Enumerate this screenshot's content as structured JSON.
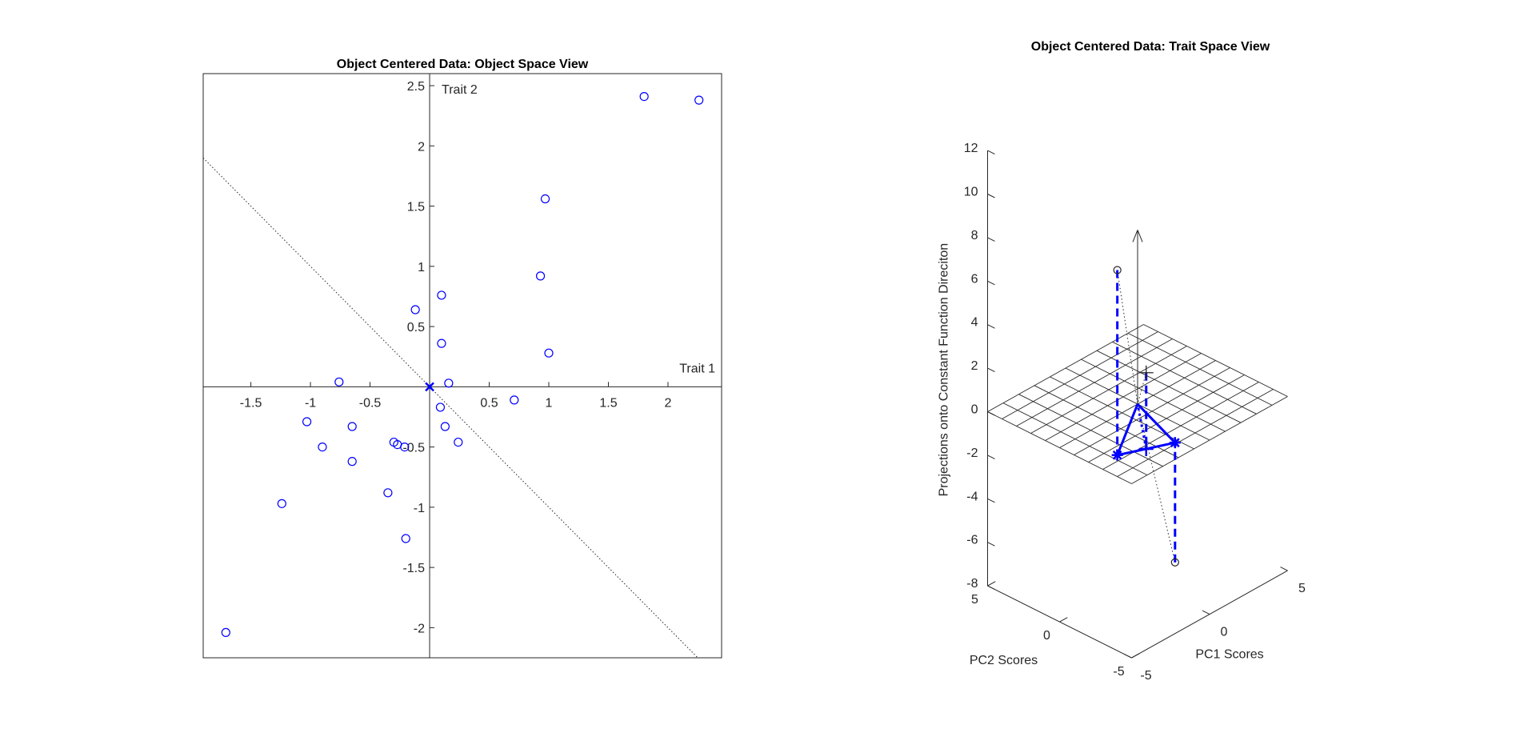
{
  "chart_data": [
    {
      "type": "scatter",
      "title": "Object Centered Data: Object Space View",
      "xlabel": "Trait 1",
      "ylabel": "Trait 2",
      "xlim": [
        -1.9,
        2.45
      ],
      "ylim": [
        -2.25,
        2.6
      ],
      "xticks": [
        -1.5,
        -1,
        -0.5,
        0.5,
        1,
        1.5,
        2
      ],
      "yticks": [
        -2,
        -1.5,
        -1,
        -0.5,
        0.5,
        1,
        1.5,
        2,
        2.5
      ],
      "xtick_labels": [
        "-1.5",
        "-1",
        "-0.5",
        "0.5",
        "1",
        "1.5",
        "2"
      ],
      "ytick_labels": [
        "-2",
        "-1.5",
        "-1",
        "-0.5",
        "0.5",
        "1",
        "1.5",
        "2",
        "2.5"
      ],
      "grid": false,
      "marker_color": "#0000ff",
      "center_marker": {
        "x": 0,
        "y": 0,
        "marker": "x"
      },
      "dotted_line": {
        "x": [
          -1.9,
          2.25
        ],
        "y": [
          1.9,
          -2.25
        ]
      },
      "points": [
        {
          "x": 1.8,
          "y": 2.41
        },
        {
          "x": 2.26,
          "y": 2.38
        },
        {
          "x": 0.97,
          "y": 1.56
        },
        {
          "x": 0.93,
          "y": 0.92
        },
        {
          "x": 0.1,
          "y": 0.76
        },
        {
          "x": -0.12,
          "y": 0.64
        },
        {
          "x": 0.1,
          "y": 0.36
        },
        {
          "x": 1.0,
          "y": 0.28
        },
        {
          "x": -0.76,
          "y": 0.04
        },
        {
          "x": 0.16,
          "y": 0.03
        },
        {
          "x": 0.71,
          "y": -0.11
        },
        {
          "x": 0.09,
          "y": -0.17
        },
        {
          "x": -1.03,
          "y": -0.29
        },
        {
          "x": -0.65,
          "y": -0.33
        },
        {
          "x": 0.13,
          "y": -0.33
        },
        {
          "x": -0.3,
          "y": -0.46
        },
        {
          "x": -0.27,
          "y": -0.48
        },
        {
          "x": -0.21,
          "y": -0.5
        },
        {
          "x": 0.24,
          "y": -0.46
        },
        {
          "x": -0.9,
          "y": -0.5
        },
        {
          "x": -0.65,
          "y": -0.62
        },
        {
          "x": -0.35,
          "y": -0.88
        },
        {
          "x": -1.24,
          "y": -0.97
        },
        {
          "x": -0.2,
          "y": -1.26
        },
        {
          "x": -1.71,
          "y": -2.04
        }
      ]
    },
    {
      "type": "scatter3d",
      "title": "Object Centered Data: Trait Space View",
      "xlabel": "PC1 Scores",
      "ylabel": "PC2 Scores",
      "zlabel": "Projections onto Constant Function Direciton",
      "xlim": [
        -5,
        5
      ],
      "ylim": [
        -5,
        5
      ],
      "zlim": [
        -8,
        12
      ],
      "xtick_labels": [
        "-5",
        "0",
        "5"
      ],
      "ytick_labels": [
        "-5",
        "0",
        "5"
      ],
      "ztick_labels": [
        "-8",
        "-6",
        "-4",
        "-2",
        "0",
        "2",
        "4",
        "6",
        "8",
        "10",
        "12"
      ],
      "plane_z": 0,
      "plane_grid": 10,
      "constant_direction_arrow": {
        "from": [
          0,
          0,
          0
        ],
        "to": [
          0,
          0,
          8
        ]
      },
      "circle_points": [
        [
          -3.7,
          -2.6,
          8.5
        ],
        [
          -1.2,
          -3.9,
          -5.5
        ]
      ],
      "star_points": [
        [
          -3.7,
          -2.6,
          0
        ],
        [
          -1.2,
          -3.9,
          0
        ]
      ],
      "plus_points": [
        [
          -2.45,
          -3.25,
          3.5
        ],
        [
          -2.45,
          -3.25,
          0
        ]
      ],
      "line_color": "#0000ff"
    }
  ]
}
